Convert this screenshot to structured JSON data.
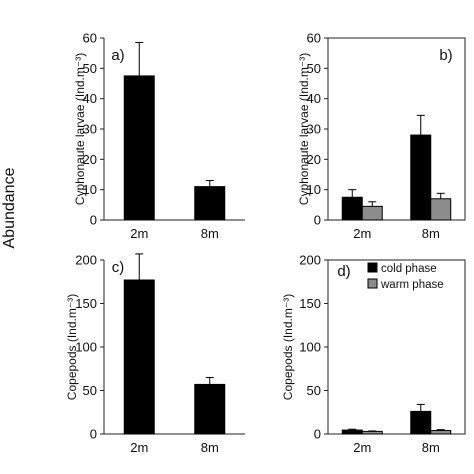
{
  "figure": {
    "side_label": "Abundance"
  },
  "chart_data": [
    {
      "type": "bar",
      "panel_label": "a)",
      "ylabel": "Cyphonaute larvae (Ind.m⁻³)",
      "categories": [
        "2m",
        "8m"
      ],
      "ylim": [
        0,
        60
      ],
      "yticks": [
        0,
        10,
        20,
        30,
        40,
        50,
        60
      ],
      "series": [
        {
          "values": [
            47.5,
            11
          ],
          "errors": [
            11,
            2
          ],
          "color": "#000000"
        }
      ]
    },
    {
      "type": "bar",
      "panel_label": "b)",
      "ylabel": "Cyphonaute larvae (Ind.m⁻³)",
      "categories": [
        "2m",
        "8m"
      ],
      "ylim": [
        0,
        60
      ],
      "yticks": [
        0,
        10,
        20,
        30,
        40,
        50,
        60
      ],
      "series": [
        {
          "values": [
            7.5,
            28
          ],
          "errors": [
            2.5,
            6.5
          ],
          "color": "#000000"
        },
        {
          "values": [
            4.5,
            7
          ],
          "errors": [
            1.5,
            1.8
          ],
          "color": "#8c8c8c"
        }
      ]
    },
    {
      "type": "bar",
      "panel_label": "c)",
      "ylabel": "Copepods (Ind.m⁻³)",
      "categories": [
        "2m",
        "8m"
      ],
      "ylim": [
        0,
        200
      ],
      "yticks": [
        0,
        50,
        100,
        150,
        200
      ],
      "series": [
        {
          "values": [
            177,
            57
          ],
          "errors": [
            30,
            8
          ],
          "color": "#000000"
        }
      ]
    },
    {
      "type": "bar",
      "panel_label": "d)",
      "ylabel": "Copepods (Ind.m⁻³)",
      "categories": [
        "2m",
        "8m"
      ],
      "ylim": [
        0,
        200
      ],
      "yticks": [
        0,
        50,
        100,
        150,
        200
      ],
      "legend": {
        "placement": "top-right"
      },
      "series": [
        {
          "name": "cold phase",
          "values": [
            4.5,
            26
          ],
          "errors": [
            1,
            8
          ],
          "color": "#000000"
        },
        {
          "name": "warm phase",
          "values": [
            3,
            4
          ],
          "errors": [
            0.5,
            1
          ],
          "color": "#8c8c8c"
        }
      ]
    }
  ]
}
